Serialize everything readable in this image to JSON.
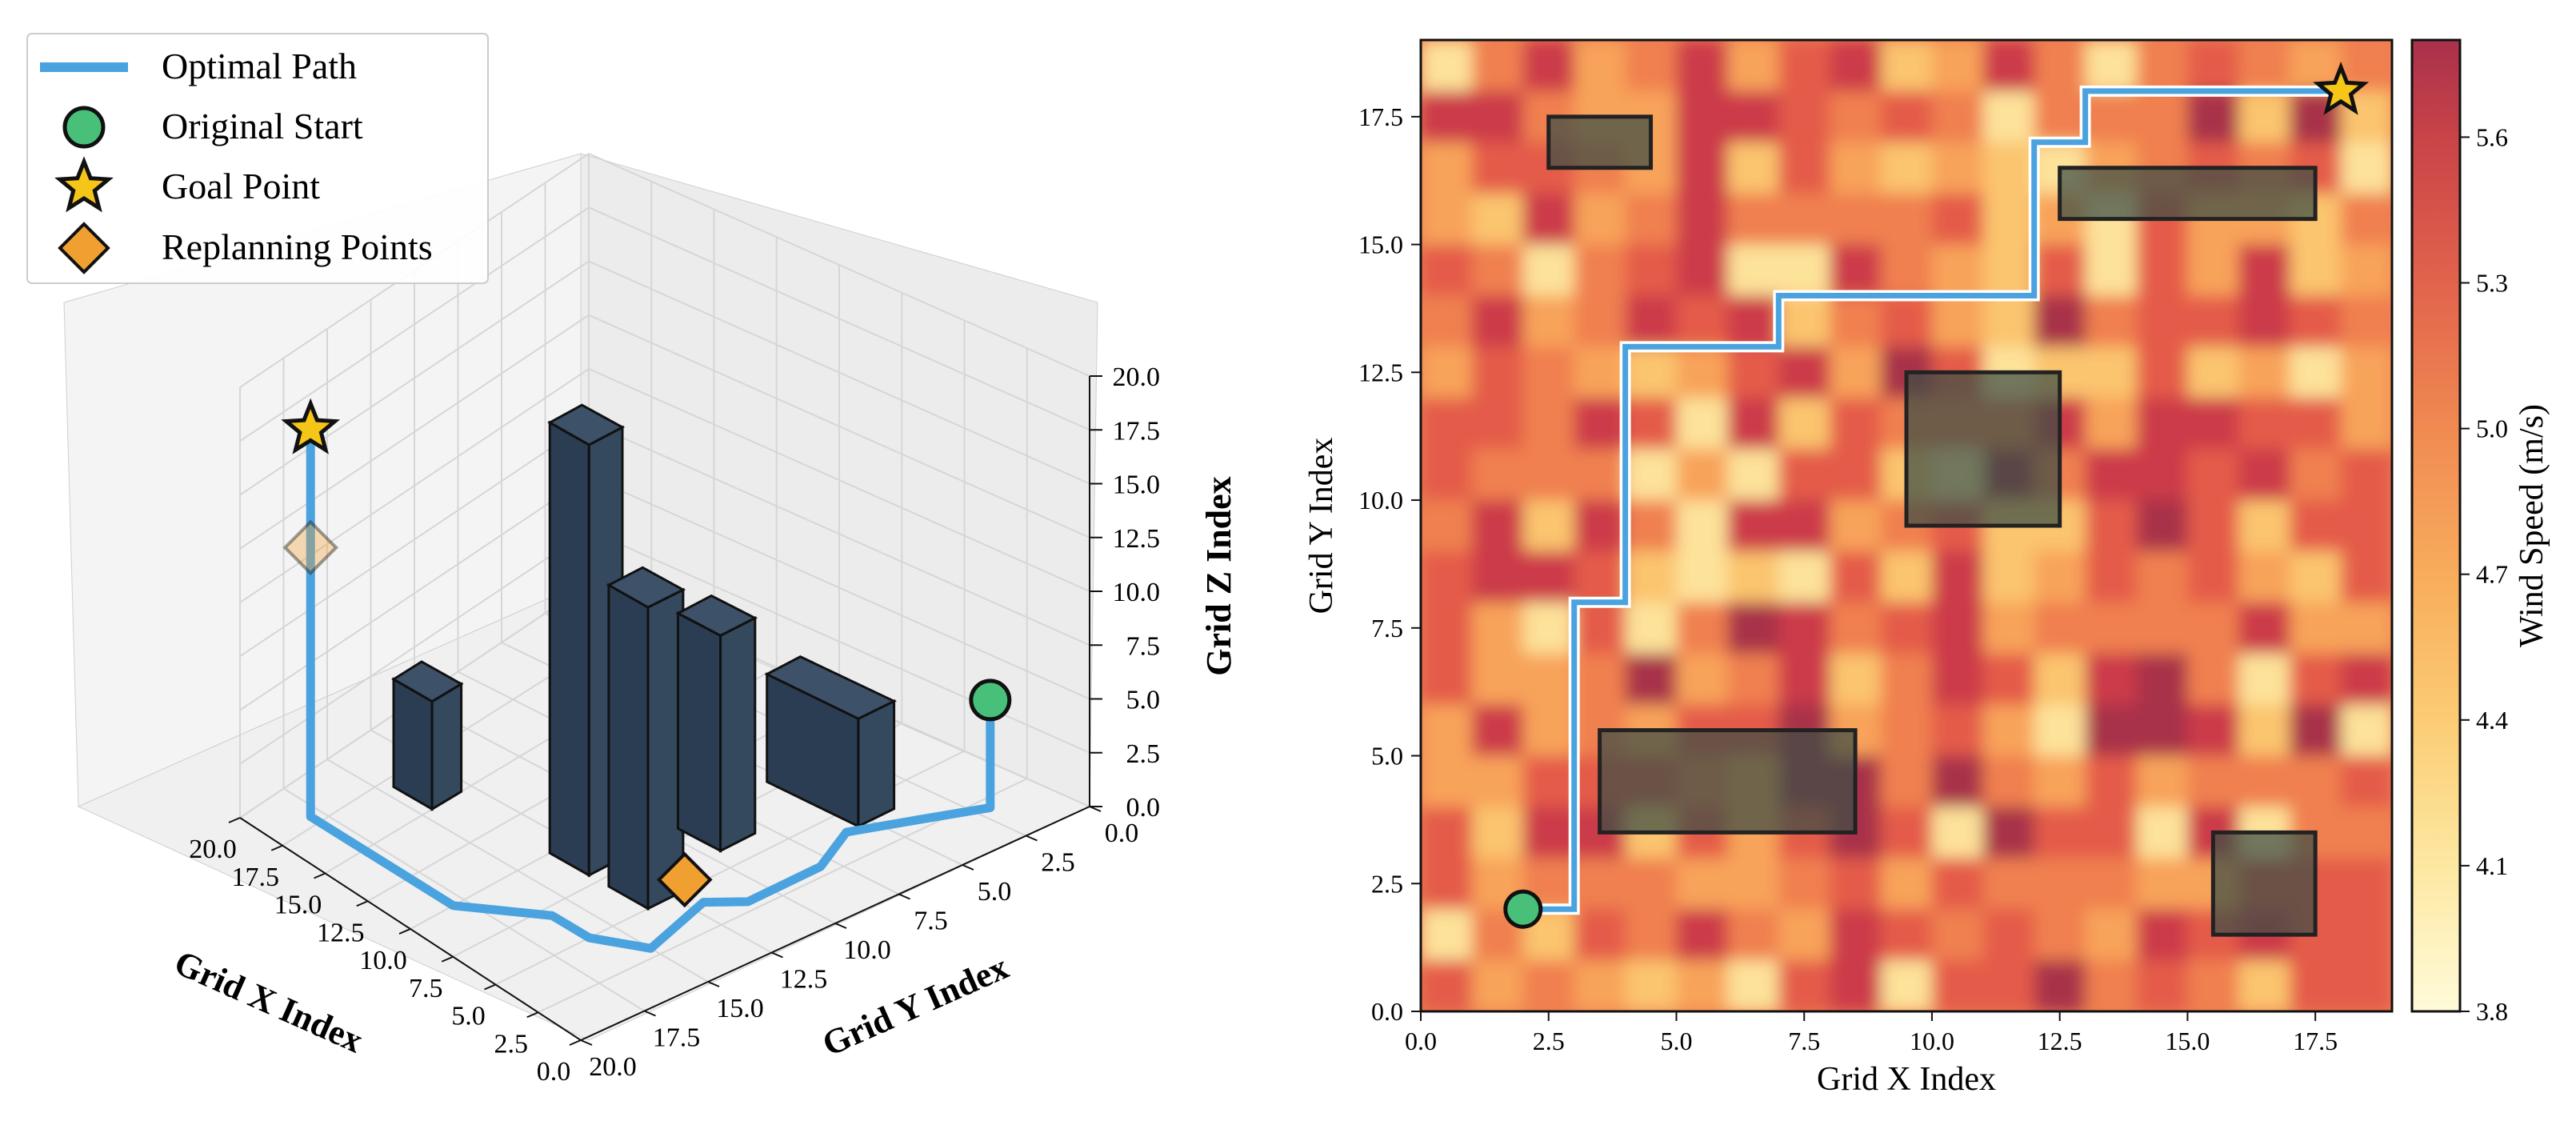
{
  "chart_data": [
    {
      "type": "line3d",
      "xlabel": "Grid X Index",
      "ylabel": "Grid Y Index",
      "zlabel": "Grid Z Index",
      "xlim": [
        0,
        20
      ],
      "ylim": [
        0,
        20
      ],
      "zlim": [
        0,
        20
      ],
      "x_ticks": [
        "0.0",
        "2.5",
        "5.0",
        "7.5",
        "10.0",
        "12.5",
        "15.0",
        "17.5",
        "20.0"
      ],
      "y_ticks": [
        "0.0",
        "2.5",
        "5.0",
        "7.5",
        "10.0",
        "12.5",
        "15.0",
        "17.5",
        "20.0"
      ],
      "z_ticks": [
        "0.0",
        "2.5",
        "5.0",
        "7.5",
        "10.0",
        "12.5",
        "15.0",
        "17.5",
        "20.0"
      ],
      "grid": true,
      "legend": {
        "placement": "top-left",
        "entries": [
          {
            "label": "Optimal Path",
            "marker": "line",
            "color": "#4aa3df"
          },
          {
            "label": "Original Start",
            "marker": "circle",
            "color": "#48c07a"
          },
          {
            "label": "Goal Point",
            "marker": "star",
            "color": "#f5c518"
          },
          {
            "label": "Replanning Points",
            "marker": "diamond",
            "color": "#f0a030"
          }
        ]
      },
      "path": [
        {
          "x": 2,
          "y": 2,
          "z": 5
        },
        {
          "x": 2,
          "y": 2,
          "z": 0
        },
        {
          "x": 3,
          "y": 4,
          "z": 0
        },
        {
          "x": 4,
          "y": 6,
          "z": 0
        },
        {
          "x": 3,
          "y": 8,
          "z": 0
        },
        {
          "x": 3,
          "y": 11,
          "z": 0
        },
        {
          "x": 4,
          "y": 12,
          "z": 0
        },
        {
          "x": 3,
          "y": 15,
          "z": 0
        },
        {
          "x": 5,
          "y": 16,
          "z": 0
        },
        {
          "x": 7,
          "y": 16,
          "z": 0
        },
        {
          "x": 10,
          "y": 18,
          "z": 0
        },
        {
          "x": 13,
          "y": 18,
          "z": 0
        },
        {
          "x": 16,
          "y": 18,
          "z": 0
        },
        {
          "x": 18,
          "y": 18,
          "z": 0
        },
        {
          "x": 18,
          "y": 18,
          "z": 12.5
        },
        {
          "x": 18,
          "y": 18,
          "z": 18
        }
      ],
      "start": {
        "x": 2,
        "y": 2,
        "z": 5
      },
      "goal": {
        "x": 18,
        "y": 18,
        "z": 18
      },
      "replanning_points": [
        {
          "x": 5.5,
          "y": 11.5,
          "z": 0
        },
        {
          "x": 18,
          "y": 18,
          "z": 12.5
        }
      ],
      "obstacles": [
        {
          "x": [
            15,
            17
          ],
          "y": [
            13,
            14.5
          ],
          "z": [
            0,
            5
          ]
        },
        {
          "x": [
            4,
            8
          ],
          "y": [
            4,
            5.5
          ],
          "z": [
            0,
            5
          ]
        },
        {
          "x": [
            8,
            10
          ],
          "y": [
            12,
            13.5
          ],
          "z": [
            0,
            20
          ]
        },
        {
          "x": [
            6,
            8
          ],
          "y": [
            8,
            9.5
          ],
          "z": [
            0,
            10
          ]
        },
        {
          "x": [
            5,
            7
          ],
          "y": [
            12,
            13.5
          ],
          "z": [
            0,
            14
          ]
        }
      ]
    },
    {
      "type": "heatmap",
      "xlabel": "Grid X Index",
      "ylabel": "Grid Y Index",
      "colorbar_label": "Wind Speed (m/s)",
      "xlim": [
        0,
        19
      ],
      "ylim": [
        0,
        19
      ],
      "x_ticks": [
        "0.0",
        "2.5",
        "5.0",
        "7.5",
        "10.0",
        "12.5",
        "15.0",
        "17.5"
      ],
      "y_ticks": [
        "0.0",
        "2.5",
        "5.0",
        "7.5",
        "10.0",
        "12.5",
        "15.0",
        "17.5"
      ],
      "colorbar_ticks": [
        "3.8",
        "4.1",
        "4.4",
        "4.7",
        "5.0",
        "5.3",
        "5.6"
      ],
      "colorbar_range": [
        3.8,
        5.8
      ],
      "colors": [
        "#fff7c8",
        "#fde29a",
        "#fbc46e",
        "#f8a35a",
        "#f08050",
        "#e45c4a",
        "#cc3a48",
        "#a8304a"
      ],
      "path": [
        [
          2,
          2
        ],
        [
          3,
          2
        ],
        [
          3,
          8
        ],
        [
          4,
          8
        ],
        [
          4,
          13
        ],
        [
          7,
          13
        ],
        [
          7,
          14
        ],
        [
          12,
          14
        ],
        [
          12,
          17
        ],
        [
          13,
          17
        ],
        [
          13,
          18
        ],
        [
          18,
          18
        ]
      ],
      "start": [
        2,
        2
      ],
      "goal": [
        18,
        18
      ],
      "obstacles": [
        {
          "x": [
            2.5,
            4.5
          ],
          "y": [
            16.5,
            17.5
          ]
        },
        {
          "x": [
            12.5,
            17.5
          ],
          "y": [
            15.5,
            16.5
          ]
        },
        {
          "x": [
            9.5,
            12.5
          ],
          "y": [
            9.5,
            12.5
          ]
        },
        {
          "x": [
            3.5,
            8.5
          ],
          "y": [
            3.5,
            5.5
          ]
        },
        {
          "x": [
            15.5,
            17.5
          ],
          "y": [
            1.5,
            3.5
          ]
        }
      ]
    }
  ]
}
